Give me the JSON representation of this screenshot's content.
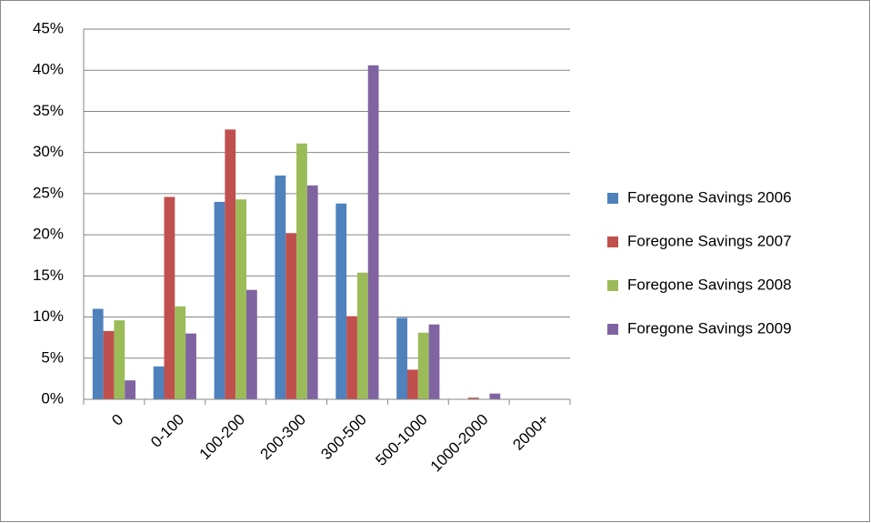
{
  "chart_data": {
    "type": "bar",
    "categories": [
      "0",
      "0-100",
      "100-200",
      "200-300",
      "300-500",
      "500-1000",
      "1000-2000",
      "2000+"
    ],
    "series": [
      {
        "name": "Foregone Savings 2006",
        "color": "#4f81bd",
        "values": [
          11.0,
          4.0,
          24.0,
          27.2,
          23.8,
          9.9,
          0,
          0
        ]
      },
      {
        "name": "Foregone Savings 2007",
        "color": "#c0504d",
        "values": [
          8.3,
          24.6,
          32.8,
          20.2,
          10.1,
          3.6,
          0.2,
          0
        ]
      },
      {
        "name": "Foregone Savings 2008",
        "color": "#9bbb59",
        "values": [
          9.6,
          11.3,
          24.3,
          31.1,
          15.4,
          8.1,
          0,
          0
        ]
      },
      {
        "name": "Foregone Savings 2009",
        "color": "#8064a2",
        "values": [
          2.3,
          8.0,
          13.3,
          26.0,
          40.6,
          9.1,
          0.7,
          0
        ]
      }
    ],
    "ylim": [
      0,
      45
    ],
    "yticks": [
      {
        "value": 0,
        "label": "0%"
      },
      {
        "value": 5,
        "label": "5%"
      },
      {
        "value": 10,
        "label": "10%"
      },
      {
        "value": 15,
        "label": "15%"
      },
      {
        "value": 20,
        "label": "20%"
      },
      {
        "value": 25,
        "label": "25%"
      },
      {
        "value": 30,
        "label": "30%"
      },
      {
        "value": 35,
        "label": "35%"
      },
      {
        "value": 40,
        "label": "40%"
      },
      {
        "value": 45,
        "label": "45%"
      }
    ],
    "grid": true,
    "legend": "right"
  }
}
